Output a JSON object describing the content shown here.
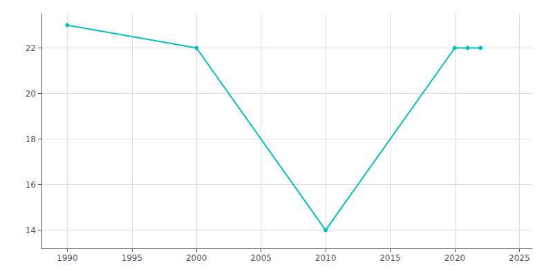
{
  "chart_data": {
    "type": "line",
    "x": [
      1990,
      2000,
      2010,
      2020,
      2021,
      2022
    ],
    "values": [
      23,
      22,
      14,
      22,
      22,
      22
    ],
    "color": "#00BFBF",
    "marker": "circle",
    "xlim": [
      1988,
      2026
    ],
    "ylim": [
      13.2,
      23.5
    ],
    "xticks": [
      1990,
      1995,
      2000,
      2005,
      2010,
      2015,
      2020,
      2025
    ],
    "yticks": [
      14,
      16,
      18,
      20,
      22
    ],
    "grid": true
  }
}
